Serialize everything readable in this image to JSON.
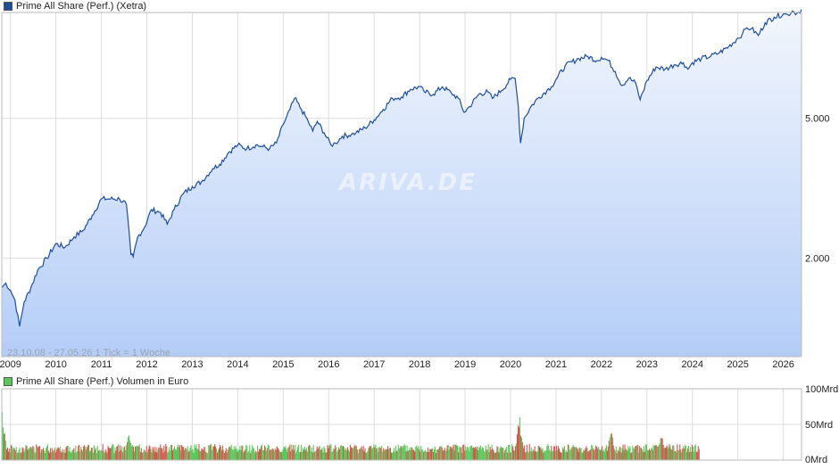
{
  "legend_main": {
    "label": "Prime All Share (Perf.) (Xetra)",
    "color": "#1f4e9c"
  },
  "legend_volume": {
    "label": "Prime All Share (Perf.) Volumen in Euro",
    "color": "#58c858"
  },
  "watermark": "ARIVA.DE",
  "range_note": "23.10.08 - 27.05.26   1 Tick = 1 Woche",
  "colors": {
    "line": "#1f4e9c",
    "area_top": "#f2f6fd",
    "area_bottom": "#b4cdf7",
    "vol_up": "#5cc85c",
    "vol_down": "#d9534f",
    "grid": "#dddddd"
  },
  "chart_data": [
    {
      "type": "line",
      "title": "Prime All Share (Perf.) (Xetra)",
      "scale": "log",
      "x_ticks": [
        "2009",
        "2010",
        "2011",
        "2012",
        "2013",
        "2014",
        "2015",
        "2016",
        "2017",
        "2018",
        "2019",
        "2020",
        "2021",
        "2022",
        "2023",
        "2024",
        "2025",
        "2026"
      ],
      "y_ticks": [
        {
          "value": 2000,
          "label": "2.000"
        },
        {
          "value": 5000,
          "label": "5.000"
        }
      ],
      "ylim": [
        1050,
        10000
      ],
      "xlim": [
        2008.81,
        2026.4
      ],
      "x": [
        2008.81,
        2008.9,
        2009.0,
        2009.1,
        2009.2,
        2009.3,
        2009.45,
        2009.6,
        2009.8,
        2010.0,
        2010.2,
        2010.4,
        2010.6,
        2010.8,
        2011.0,
        2011.2,
        2011.4,
        2011.55,
        2011.65,
        2011.7,
        2011.8,
        2011.95,
        2012.1,
        2012.3,
        2012.45,
        2012.6,
        2012.8,
        2013.0,
        2013.2,
        2013.45,
        2013.6,
        2013.8,
        2014.0,
        2014.2,
        2014.4,
        2014.55,
        2014.7,
        2014.85,
        2015.0,
        2015.15,
        2015.25,
        2015.4,
        2015.55,
        2015.65,
        2015.75,
        2015.9,
        2016.05,
        2016.15,
        2016.3,
        2016.5,
        2016.6,
        2016.8,
        2017.0,
        2017.2,
        2017.4,
        2017.6,
        2017.8,
        2018.0,
        2018.1,
        2018.3,
        2018.5,
        2018.7,
        2018.85,
        2018.98,
        2019.1,
        2019.3,
        2019.5,
        2019.6,
        2019.8,
        2020.0,
        2020.1,
        2020.17,
        2020.22,
        2020.3,
        2020.45,
        2020.6,
        2020.8,
        2020.9,
        2021.0,
        2021.2,
        2021.5,
        2021.7,
        2021.9,
        2022.0,
        2022.15,
        2022.3,
        2022.45,
        2022.6,
        2022.75,
        2022.85,
        2023.0,
        2023.2,
        2023.4,
        2023.6,
        2023.8,
        2023.9,
        2024.0,
        2024.2,
        2024.4,
        2024.6,
        2024.8,
        2025.0,
        2025.1,
        2025.2,
        2025.3,
        2025.45,
        2025.6,
        2025.8,
        2026.0,
        2026.1,
        2026.2,
        2026.3,
        2026.4
      ],
      "y": [
        1650,
        1700,
        1620,
        1520,
        1280,
        1500,
        1650,
        1850,
        2000,
        2200,
        2150,
        2300,
        2400,
        2650,
        2950,
        2950,
        2950,
        2850,
        2050,
        2020,
        2300,
        2450,
        2750,
        2700,
        2500,
        2750,
        3050,
        3200,
        3300,
        3600,
        3700,
        4000,
        4200,
        4100,
        4200,
        4150,
        4100,
        4250,
        4800,
        5300,
        5700,
        5300,
        4900,
        4600,
        4900,
        4550,
        4200,
        4250,
        4450,
        4500,
        4550,
        4700,
        4950,
        5300,
        5700,
        5750,
        6050,
        6150,
        5950,
        5850,
        6150,
        5900,
        5700,
        5200,
        5400,
        5850,
        5950,
        5700,
        6000,
        6450,
        6500,
        5400,
        4250,
        5000,
        5400,
        5700,
        6000,
        6150,
        6450,
        7050,
        7400,
        7500,
        7300,
        7450,
        7300,
        6800,
        6200,
        6500,
        6300,
        5650,
        6400,
        7000,
        6900,
        7100,
        7200,
        6900,
        7200,
        7400,
        7500,
        7700,
        8000,
        8450,
        8700,
        9050,
        9000,
        8600,
        9350,
        9700,
        9900,
        9850,
        10100,
        9950,
        10200
      ]
    },
    {
      "type": "bar",
      "title": "Prime All Share (Perf.) Volumen in Euro",
      "y_ticks": [
        {
          "value": 0,
          "label": "0Mrd"
        },
        {
          "value": 50,
          "label": "50Mrd"
        },
        {
          "value": 100,
          "label": "100Mrd"
        }
      ],
      "ylim": [
        0,
        100
      ],
      "unit": "Mrd",
      "x_range": [
        2008.81,
        2024.15
      ],
      "description_values": "weekly volume, typically 10-25 Mrd, peaks near 2008 (~67), 2011 (~45), 2020 (~68), 2022 (~45)",
      "peaks": [
        {
          "x": 2008.82,
          "value": 67
        },
        {
          "x": 2011.6,
          "value": 45
        },
        {
          "x": 2020.18,
          "value": 68
        },
        {
          "x": 2022.2,
          "value": 44
        },
        {
          "x": 2023.3,
          "value": 42
        }
      ],
      "baseline_level": 18
    }
  ]
}
